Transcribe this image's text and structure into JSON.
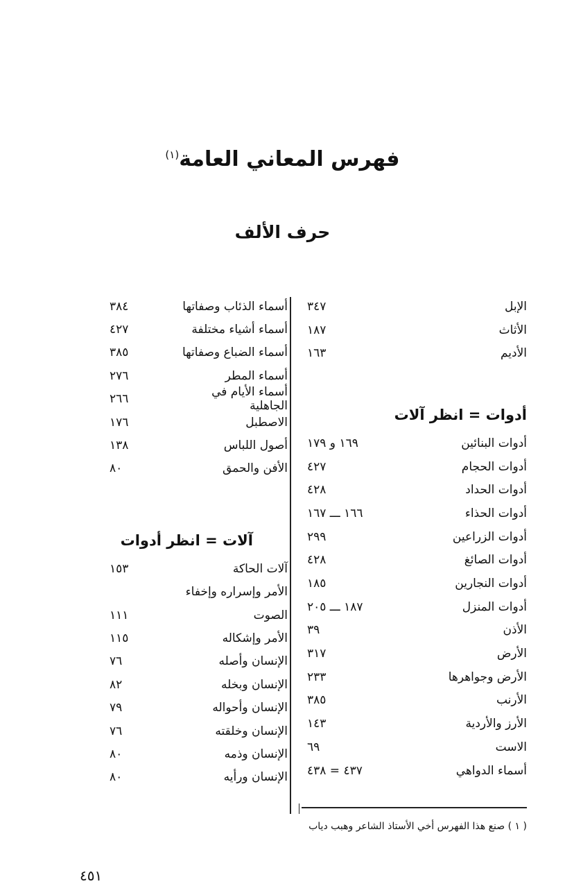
{
  "title": "فهرس المعاني العامة",
  "title_footnote_mark": "(١)",
  "subtitle": "حرف الألف",
  "right_column": {
    "top_entries": [
      {
        "term": "الإبل",
        "page": "٣٤٧"
      },
      {
        "term": "الأثاث",
        "page": "١٨٧"
      },
      {
        "term": "الأديم",
        "page": "١٦٣"
      }
    ],
    "heading": "أدوات = انظر آلات",
    "entries": [
      {
        "term": "أدوات البنائين",
        "page": "١٦٩ و ١٧٩"
      },
      {
        "term": "أدوات الحجام",
        "page": "٤٢٧"
      },
      {
        "term": "أدوات الحداد",
        "page": "٤٢٨"
      },
      {
        "term": "أدوات الحذاء",
        "page": "١٦٦ ـــ ١٦٧"
      },
      {
        "term": "أدوات الزراعين",
        "page": "٢٩٩"
      },
      {
        "term": "أدوات الصائغ",
        "page": "٤٢٨"
      },
      {
        "term": "أدوات النجارين",
        "page": "١٨٥"
      },
      {
        "term": "أدوات المنزل",
        "page": "١٨٧ ـــ ٢٠٥"
      },
      {
        "term": "الأذن",
        "page": "٣٩"
      },
      {
        "term": "الأرض",
        "page": "٣١٧"
      },
      {
        "term": "الأرض وجواهرها",
        "page": "٢٣٣"
      },
      {
        "term": "الأرنب",
        "page": "٣٨٥"
      },
      {
        "term": "الأرز والأردية",
        "page": "١٤٣"
      },
      {
        "term": "الاست",
        "page": "٦٩"
      },
      {
        "term": "أسماء الدواهي",
        "page": "٤٣٧ = ٤٣٨"
      }
    ]
  },
  "left_column": {
    "top_entries": [
      {
        "term": "أسماء الذئاب وصفاتها",
        "page": "٣٨٤"
      },
      {
        "term": "أسماء أشياء مختلفة",
        "page": "٤٢٧"
      },
      {
        "term": "أسماء الضباع وصفاتها",
        "page": "٣٨٥"
      },
      {
        "term": "أسماء المطر",
        "page": "٢٧٦"
      },
      {
        "term": "أسماء الأيام في الجاهلية",
        "page": "٢٦٦"
      },
      {
        "term": "الاصطبل",
        "page": "١٧٦"
      },
      {
        "term": "أصول اللباس",
        "page": "١٣٨"
      },
      {
        "term": "الأفن والحمق",
        "page": "٨٠"
      }
    ],
    "heading": "آلات = انظر أدوات",
    "entries": [
      {
        "term": "آلات الحاكة",
        "page": "١٥٣"
      },
      {
        "term": "الأمر وإسراره وإخفاء",
        "page": ""
      },
      {
        "term": "الصوت",
        "page": "١١١"
      },
      {
        "term": "الأمر وإشكاله",
        "page": "١١٥"
      },
      {
        "term": "الإنسان وأصله",
        "page": "٧٦"
      },
      {
        "term": "الإنسان وبخله",
        "page": "٨٢"
      },
      {
        "term": "الإنسان وأحواله",
        "page": "٧٩"
      },
      {
        "term": "الإنسان وخلقته",
        "page": "٧٦"
      },
      {
        "term": "الإنسان وذمه",
        "page": "٨٠"
      },
      {
        "term": "الإنسان ورأيه",
        "page": "٨٠"
      }
    ]
  },
  "footnote": "( ١ ) صنع هذا الفهرس أخي الأستاذ الشاعر وهبب دياب",
  "page_number": "٤٥١"
}
